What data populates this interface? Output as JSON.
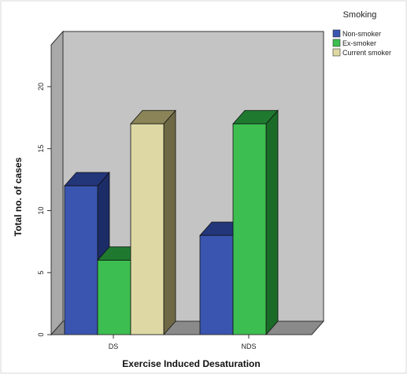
{
  "chart_data": {
    "type": "bar",
    "style": "3d-grouped",
    "categories": [
      "DS",
      "NDS"
    ],
    "series": [
      {
        "name": "Non-smoker",
        "values": [
          12,
          8
        ],
        "color": "#3a55b0",
        "top": "#23367a",
        "side": "#1c2c66"
      },
      {
        "name": "Ex-smoker",
        "values": [
          6,
          17
        ],
        "color": "#3cbf50",
        "top": "#1f7a30",
        "side": "#1a6a28"
      },
      {
        "name": "Current smoker",
        "values": [
          17,
          0
        ],
        "color": "#ded9a4",
        "top": "#8a8458",
        "side": "#6e6944"
      }
    ],
    "xlabel": "Exercise Induced Desaturation",
    "ylabel": "Total no. of cases",
    "ylim": [
      0,
      20
    ],
    "yticks": [
      0,
      5,
      10,
      15,
      20
    ],
    "legend_title": "Smoking",
    "legend_position": "top-right",
    "wall_color": "#c4c4c4",
    "floor_color": "#8a8a8a"
  }
}
